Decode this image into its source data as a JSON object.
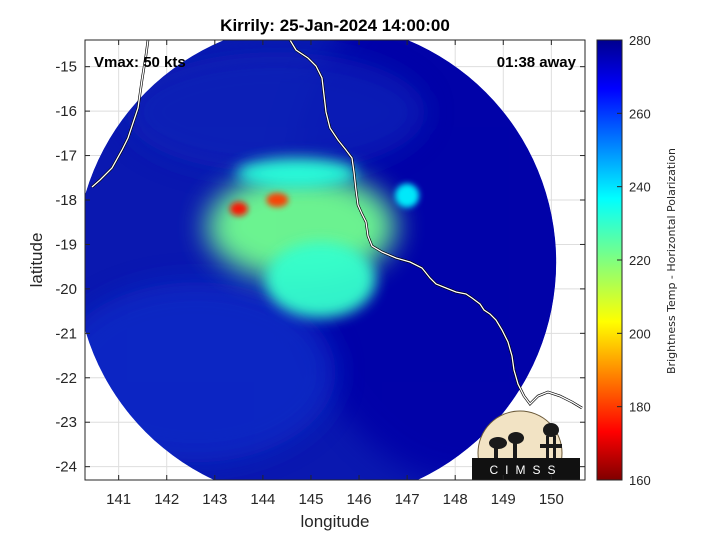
{
  "chart_data": {
    "type": "heatmap",
    "title": "Kirrily: 25-Jan-2024 14:00:00",
    "xlabel": "longitude",
    "ylabel": "latitude",
    "xlim": [
      140.3,
      150.7
    ],
    "ylim": [
      -24.3,
      -14.4
    ],
    "xticks": [
      141,
      142,
      143,
      144,
      145,
      146,
      147,
      148,
      149,
      150
    ],
    "yticks": [
      -15,
      -16,
      -17,
      -18,
      -19,
      -20,
      -21,
      -22,
      -23,
      -24
    ],
    "grid": true,
    "annotations": {
      "vmax": "Vmax: 50 kts",
      "time_away": "01:38 away"
    },
    "colorbar": {
      "label": "Brightness Temp - Horizontal Polarization",
      "min": 160,
      "max": 280,
      "ticks": [
        280,
        260,
        240,
        220,
        200,
        180,
        160
      ],
      "colormap": "jet"
    },
    "swath": {
      "center_lon": 145.1,
      "center_lat": -19.4,
      "radius_deg": 5.0
    },
    "features": [
      {
        "name": "cold core west",
        "lon": 143.5,
        "lat": -18.2,
        "value": 175
      },
      {
        "name": "cold core east",
        "lon": 144.3,
        "lat": -18.0,
        "value": 180
      },
      {
        "name": "main convection",
        "lon": 144.8,
        "lat": -18.6,
        "value": 222
      },
      {
        "name": "southern band",
        "lon": 145.2,
        "lat": -19.8,
        "value": 230
      },
      {
        "name": "outer band north",
        "lon": 144.7,
        "lat": -17.4,
        "value": 232
      },
      {
        "name": "offshore cell",
        "lon": 147.0,
        "lat": -17.9,
        "value": 238
      }
    ]
  },
  "logo": {
    "text": "CIMSS"
  },
  "colors": {
    "background": "#ffffff",
    "swath_base": "#0a18b0",
    "ocean": "#0000a8",
    "coastline": "#ffffff"
  }
}
